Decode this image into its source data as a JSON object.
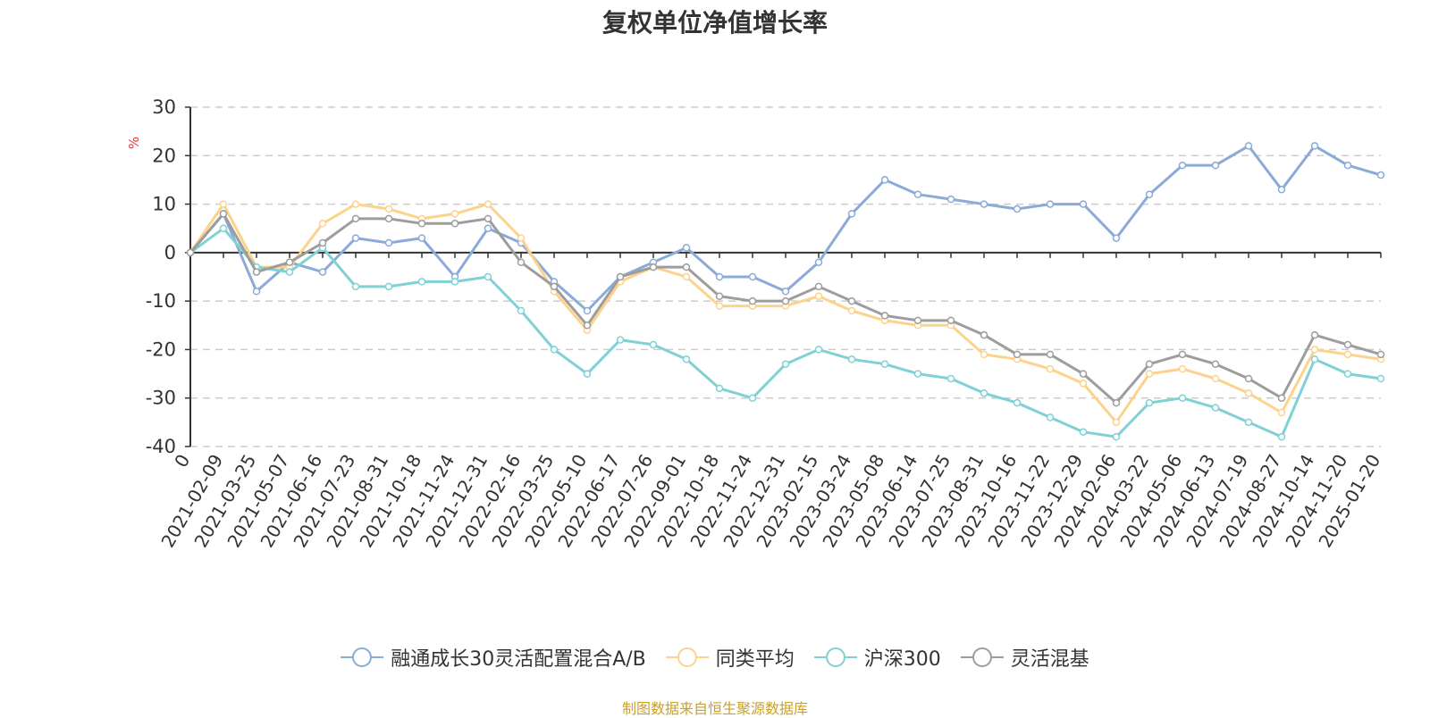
{
  "chart_data": {
    "type": "line",
    "title": "复权单位净值增长率",
    "ylabel": "%",
    "ylim": [
      -40,
      30
    ],
    "yticks": [
      30,
      20,
      10,
      0,
      -10,
      -20,
      -30,
      -40
    ],
    "x_tick_labels": [
      "0",
      "2021-02-09",
      "2021-03-25",
      "2021-05-07",
      "2021-06-16",
      "2021-07-23",
      "2021-08-31",
      "2021-10-18",
      "2021-11-24",
      "2021-12-31",
      "2022-02-16",
      "2022-03-25",
      "2022-05-10",
      "2022-06-17",
      "2022-07-26",
      "2022-09-01",
      "2022-10-18",
      "2022-11-24",
      "2022-12-31",
      "2023-02-15",
      "2023-03-24",
      "2023-05-08",
      "2023-06-14",
      "2023-07-25",
      "2023-08-31",
      "2023-10-16",
      "2023-11-22",
      "2023-12-29",
      "2024-02-06",
      "2024-03-22",
      "2024-05-06",
      "2024-06-13",
      "2024-07-19",
      "2024-08-27",
      "2024-10-14",
      "2024-11-20",
      "2025-01-20"
    ],
    "grid": true,
    "legend_position": "bottom",
    "series": [
      {
        "name": "融通成长30灵活配置混合A/B",
        "color": "#8aaad8",
        "values": [
          0,
          8,
          -8,
          -2,
          -4,
          3,
          2,
          3,
          -5,
          5,
          2,
          -6,
          -12,
          -5,
          -2,
          1,
          -5,
          -5,
          -8,
          -2,
          8,
          15,
          12,
          11,
          10,
          9,
          10,
          10,
          3,
          12,
          18,
          18,
          22,
          13,
          22,
          18,
          16
        ]
      },
      {
        "name": "同类平均",
        "color": "#fdd28a",
        "values": [
          0,
          10,
          -3,
          -3,
          6,
          10,
          9,
          7,
          8,
          10,
          3,
          -8,
          -16,
          -6,
          -3,
          -5,
          -11,
          -11,
          -11,
          -9,
          -12,
          -14,
          -15,
          -15,
          -21,
          -22,
          -24,
          -27,
          -35,
          -25,
          -24,
          -26,
          -29,
          -33,
          -20,
          -21,
          -22
        ]
      },
      {
        "name": "沪深300",
        "color": "#7fd1d4",
        "values": [
          0,
          5,
          -3,
          -4,
          1,
          -7,
          -7,
          -6,
          -6,
          -5,
          -12,
          -20,
          -25,
          -18,
          -19,
          -22,
          -28,
          -30,
          -23,
          -20,
          -22,
          -23,
          -25,
          -26,
          -29,
          -31,
          -34,
          -37,
          -38,
          -31,
          -30,
          -32,
          -35,
          -38,
          -22,
          -25,
          -26
        ]
      },
      {
        "name": "灵活混基",
        "color": "#9d9d9d",
        "values": [
          0,
          8,
          -4,
          -2,
          2,
          7,
          7,
          6,
          6,
          7,
          -2,
          -7,
          -15,
          -5,
          -3,
          -3,
          -9,
          -10,
          -10,
          -7,
          -10,
          -13,
          -14,
          -14,
          -17,
          -21,
          -21,
          -25,
          -31,
          -23,
          -21,
          -23,
          -26,
          -30,
          -17,
          -19,
          -21
        ]
      }
    ]
  },
  "source_note": "制图数据来自恒生聚源数据库"
}
